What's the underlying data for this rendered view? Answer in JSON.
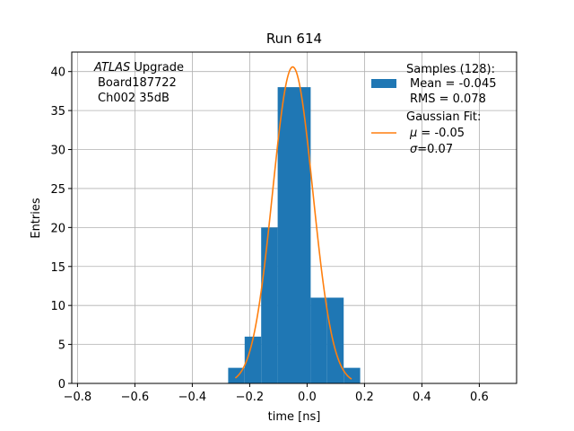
{
  "chart_data": {
    "type": "bar",
    "title": "Run 614",
    "xlabel": "time [ns]",
    "ylabel": "Entries",
    "xlim": [
      -0.82,
      0.73
    ],
    "ylim": [
      0,
      42.5
    ],
    "grid": true,
    "xticks": [
      -0.8,
      -0.6,
      -0.4,
      -0.2,
      0.0,
      0.2,
      0.4,
      0.6
    ],
    "xtick_labels": [
      "−0.8",
      "−0.6",
      "−0.4",
      "−0.2",
      "0.0",
      "0.2",
      "0.4",
      "0.6"
    ],
    "yticks": [
      0,
      5,
      10,
      15,
      20,
      25,
      30,
      35,
      40
    ],
    "yticks_labels": [
      "0",
      "5",
      "10",
      "15",
      "20",
      "25",
      "30",
      "35",
      "40"
    ],
    "annotation": {
      "line1_italic": "ATLAS",
      "line1_rest": " Upgrade",
      "line2": "Board187722",
      "line3": "Ch002 35dB"
    },
    "histogram": {
      "name": "Samples (128):",
      "color": "#1f77b4",
      "bins": [
        {
          "x0": -0.275,
          "x1": -0.2175,
          "count": 2
        },
        {
          "x0": -0.2175,
          "x1": -0.16,
          "count": 6
        },
        {
          "x0": -0.16,
          "x1": -0.1025,
          "count": 20
        },
        {
          "x0": -0.1025,
          "x1": -0.045,
          "count": 38
        },
        {
          "x0": -0.045,
          "x1": 0.0125,
          "count": 38
        },
        {
          "x0": 0.0125,
          "x1": 0.07,
          "count": 11
        },
        {
          "x0": 0.07,
          "x1": 0.1275,
          "count": 11
        },
        {
          "x0": 0.1275,
          "x1": 0.185,
          "count": 2
        }
      ]
    },
    "fit": {
      "name": "Gaussian Fit:",
      "color": "#ff7f0e",
      "type": "gaussian",
      "amplitude": 40.6,
      "mu": -0.05,
      "sigma": 0.07,
      "x_range": [
        -0.25,
        0.155
      ]
    },
    "legend": {
      "placement": "top-right",
      "samples_title": "Samples (128):",
      "samples_mean": "Mean = -0.045",
      "samples_rms": "RMS = 0.078",
      "fit_title": "Gaussian Fit:",
      "fit_mu_symbol": "μ",
      "fit_mu_value": " = -0.05",
      "fit_sigma_symbol": "σ",
      "fit_sigma_value": "=0.07"
    }
  }
}
